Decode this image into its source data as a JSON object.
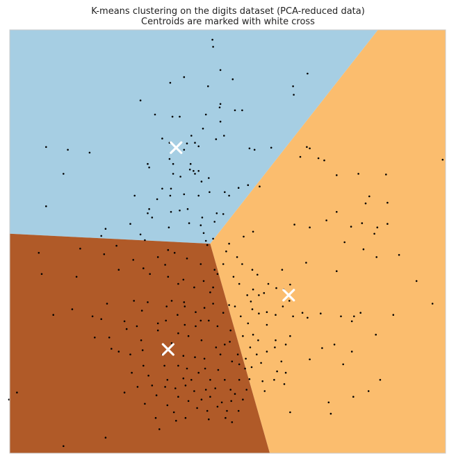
{
  "chart_data": {
    "type": "scatter",
    "title": "K-means clustering on the digits dataset (PCA-reduced data)",
    "subtitle": "Centroids are marked with white cross",
    "xlabel": "",
    "ylabel": "",
    "xlim": [
      -30,
      30
    ],
    "ylim": [
      -30,
      30
    ],
    "axis_ticks": "none",
    "grid": false,
    "colors": {
      "region_blue": "#a6cee3",
      "region_orange": "#fbbd6e",
      "region_brown": "#b05a28",
      "points": "#000000",
      "centroids": "#ffffff",
      "frame": "#cccccc"
    },
    "regions": [
      {
        "cluster": 0,
        "color": "#a6cee3",
        "polygon": [
          [
            -30,
            1.1
          ],
          [
            -2.4,
            -0.3
          ],
          [
            20.7,
            30
          ],
          [
            -30,
            30
          ]
        ]
      },
      {
        "cluster": 1,
        "color": "#fbbd6e",
        "polygon": [
          [
            -2.4,
            -0.3
          ],
          [
            20.7,
            30
          ],
          [
            30,
            30
          ],
          [
            30,
            -30
          ],
          [
            5.8,
            -30
          ]
        ]
      },
      {
        "cluster": 2,
        "color": "#b05a28",
        "polygon": [
          [
            -30,
            1.1
          ],
          [
            -2.4,
            -0.3
          ],
          [
            5.8,
            -30
          ],
          [
            -30,
            -30
          ]
        ]
      }
    ],
    "centroids": [
      {
        "x": -7.1,
        "y": 13.3
      },
      {
        "x": 8.4,
        "y": -7.6
      },
      {
        "x": -8.2,
        "y": -15.3
      }
    ],
    "points": [
      [
        -2.1,
        28.6
      ],
      [
        -2.0,
        27.6
      ],
      [
        -1.0,
        24.3
      ],
      [
        11.0,
        23.8
      ],
      [
        -6.0,
        23.3
      ],
      [
        -7.9,
        22.5
      ],
      [
        -2.7,
        22.0
      ],
      [
        0.7,
        23.0
      ],
      [
        9.0,
        22.0
      ],
      [
        9.1,
        20.8
      ],
      [
        -12.0,
        20.0
      ],
      [
        -1.0,
        19.5
      ],
      [
        -1.1,
        19.0
      ],
      [
        1.0,
        18.6
      ],
      [
        2.0,
        18.6
      ],
      [
        -3.0,
        18.0
      ],
      [
        -10.0,
        18.0
      ],
      [
        -6.6,
        17.7
      ],
      [
        -7.6,
        17.7
      ],
      [
        -1.0,
        17.0
      ],
      [
        -3.4,
        16.0
      ],
      [
        -0.5,
        15.0
      ],
      [
        -1.6,
        14.5
      ],
      [
        -5.0,
        15.0
      ],
      [
        -8.0,
        14.0
      ],
      [
        -5.6,
        13.9
      ],
      [
        -4.0,
        13.5
      ],
      [
        -6.0,
        13.0
      ],
      [
        -9.0,
        14.6
      ],
      [
        -4.5,
        14.0
      ],
      [
        -25.0,
        13.4
      ],
      [
        -22.0,
        13.0
      ],
      [
        -19.0,
        12.6
      ],
      [
        3.0,
        13.2
      ],
      [
        3.7,
        13.0
      ],
      [
        6.0,
        13.3
      ],
      [
        10.9,
        13.4
      ],
      [
        11.3,
        13.2
      ],
      [
        10.0,
        12.0
      ],
      [
        12.5,
        11.8
      ],
      [
        13.3,
        11.5
      ],
      [
        -8.0,
        11.7
      ],
      [
        -5.1,
        11.0
      ],
      [
        -7.5,
        11.0
      ],
      [
        -4.7,
        10.0
      ],
      [
        -11.0,
        11.0
      ],
      [
        -10.8,
        10.5
      ],
      [
        -5.2,
        10.2
      ],
      [
        -4.0,
        10.0
      ],
      [
        -4.5,
        9.6
      ],
      [
        -6.5,
        9.2
      ],
      [
        -22.6,
        9.6
      ],
      [
        -3.6,
        8.5
      ],
      [
        -2.6,
        9.0
      ],
      [
        -7.5,
        9.6
      ],
      [
        -7.8,
        7.5
      ],
      [
        2.8,
        8.0
      ],
      [
        4.4,
        7.8
      ],
      [
        -9.0,
        7.5
      ],
      [
        -7.9,
        6.5
      ],
      [
        -12.8,
        6.5
      ],
      [
        -9.7,
        6.0
      ],
      [
        -4.0,
        6.5
      ],
      [
        -2.5,
        7.0
      ],
      [
        1.5,
        7.6
      ],
      [
        -0.4,
        7.0
      ],
      [
        0.2,
        6.5
      ],
      [
        -6.0,
        6.7
      ],
      [
        15.0,
        9.4
      ],
      [
        18.0,
        9.6
      ],
      [
        21.8,
        9.5
      ],
      [
        -5.5,
        4.6
      ],
      [
        -6.6,
        4.4
      ],
      [
        -7.8,
        4.2
      ],
      [
        -10.8,
        4.6
      ],
      [
        -11.0,
        4.0
      ],
      [
        -10.4,
        3.4
      ],
      [
        -3.5,
        3.4
      ],
      [
        -1.8,
        2.8
      ],
      [
        -3.7,
        2.3
      ],
      [
        -5.3,
        2.6
      ],
      [
        -1.5,
        4.0
      ],
      [
        -0.6,
        3.9
      ],
      [
        19.5,
        6.4
      ],
      [
        19.0,
        5.4
      ],
      [
        15.0,
        4.2
      ],
      [
        22.0,
        5.5
      ],
      [
        -25.0,
        5.0
      ],
      [
        -8.1,
        2.0
      ],
      [
        -16.8,
        1.8
      ],
      [
        -17.4,
        0.8
      ],
      [
        -13.4,
        2.5
      ],
      [
        -12.0,
        1.0
      ],
      [
        -11.4,
        0.2
      ],
      [
        -3.0,
        0.1
      ],
      [
        -3.3,
        1.2
      ],
      [
        -2.0,
        0.4
      ],
      [
        -2.8,
        -0.5
      ],
      [
        3.5,
        1.4
      ],
      [
        2.2,
        0.7
      ],
      [
        0.2,
        -0.3
      ],
      [
        -0.2,
        -1.4
      ],
      [
        13.6,
        3.0
      ],
      [
        9.2,
        2.4
      ],
      [
        11.3,
        2.0
      ],
      [
        17.0,
        2.1
      ],
      [
        20.2,
        1.1
      ],
      [
        20.6,
        2.0
      ],
      [
        18.5,
        2.6
      ],
      [
        16.1,
        -0.1
      ],
      [
        18.7,
        -1.1
      ],
      [
        22.0,
        2.5
      ],
      [
        20.5,
        -2.2
      ],
      [
        -15.3,
        -0.6
      ],
      [
        -17.0,
        -1.8
      ],
      [
        -20.3,
        -1.0
      ],
      [
        -26.0,
        -1.6
      ],
      [
        -13.0,
        -2.6
      ],
      [
        -11.6,
        -3.8
      ],
      [
        -15.0,
        -4.0
      ],
      [
        -7.3,
        -1.6
      ],
      [
        -8.2,
        -1.2
      ],
      [
        -9.6,
        -2.2
      ],
      [
        -8.6,
        -3.3
      ],
      [
        -5.6,
        -2.4
      ],
      [
        -3.7,
        -3.2
      ],
      [
        -1.8,
        -4.0
      ],
      [
        1.3,
        -2.2
      ],
      [
        -0.6,
        -3.2
      ],
      [
        -1.4,
        -4.6
      ],
      [
        0.8,
        -5.0
      ],
      [
        2.0,
        -3.2
      ],
      [
        3.4,
        -4.0
      ],
      [
        4.1,
        -4.7
      ],
      [
        10.8,
        -3.0
      ],
      [
        7.5,
        -4.0
      ],
      [
        15.0,
        -4.2
      ],
      [
        -25.6,
        -4.6
      ],
      [
        -20.8,
        -5.0
      ],
      [
        -8.2,
        -5.0
      ],
      [
        -10.7,
        -4.6
      ],
      [
        -6.8,
        -6.0
      ],
      [
        -6.1,
        -5.4
      ],
      [
        -4.6,
        -6.5
      ],
      [
        -3.3,
        -5.6
      ],
      [
        -2.0,
        -6.5
      ],
      [
        -2.4,
        -7.2
      ],
      [
        3.5,
        -6.8
      ],
      [
        2.7,
        -7.6
      ],
      [
        3.2,
        -8.5
      ],
      [
        5.0,
        -7.3
      ],
      [
        4.3,
        -7.6
      ],
      [
        5.6,
        -6.0
      ],
      [
        1.6,
        -6.0
      ],
      [
        8.6,
        -6.1
      ],
      [
        6.7,
        -6.6
      ],
      [
        7.7,
        -6.8
      ],
      [
        1.0,
        -9.2
      ],
      [
        -6.0,
        -8.6
      ],
      [
        -7.7,
        -8.4
      ],
      [
        -8.4,
        -9.2
      ],
      [
        -5.9,
        -9.2
      ],
      [
        -11.8,
        -9.8
      ],
      [
        -12.9,
        -8.4
      ],
      [
        -16.6,
        -8.8
      ],
      [
        -11.0,
        -8.6
      ],
      [
        -4.4,
        -10.0
      ],
      [
        -3.2,
        -9.4
      ],
      [
        -2.0,
        -8.8
      ],
      [
        0.2,
        -9.0
      ],
      [
        -0.6,
        -10.1
      ],
      [
        1.8,
        -10.6
      ],
      [
        3.4,
        -9.6
      ],
      [
        4.3,
        -10.2
      ],
      [
        6.6,
        -10.4
      ],
      [
        7.6,
        -9.2
      ],
      [
        5.4,
        -10.0
      ],
      [
        8.5,
        -8.4
      ],
      [
        9.0,
        -10.6
      ],
      [
        10.3,
        -10.1
      ],
      [
        11.0,
        -10.8
      ],
      [
        12.8,
        -10.2
      ],
      [
        15.6,
        -10.6
      ],
      [
        17.4,
        -10.6
      ],
      [
        18.3,
        -10.1
      ],
      [
        17.1,
        -11.3
      ],
      [
        -24.0,
        -10.4
      ],
      [
        -21.4,
        -9.6
      ],
      [
        -18.6,
        -10.6
      ],
      [
        -17.4,
        -11.0
      ],
      [
        -14.2,
        -11.3
      ],
      [
        -12.5,
        -12.0
      ],
      [
        -9.6,
        -11.6
      ],
      [
        -8.5,
        -11.2
      ],
      [
        -6.9,
        -10.4
      ],
      [
        -5.9,
        -11.8
      ],
      [
        -4.4,
        -12.0
      ],
      [
        -3.7,
        -11.2
      ],
      [
        -2.6,
        -11.2
      ],
      [
        -1.4,
        -12.0
      ],
      [
        0.4,
        -12.6
      ],
      [
        2.8,
        -11.6
      ],
      [
        5.4,
        -11.8
      ],
      [
        2.1,
        -13.4
      ],
      [
        3.5,
        -13.2
      ],
      [
        -5.4,
        -13.4
      ],
      [
        -6.8,
        -13.0
      ],
      [
        -9.6,
        -12.6
      ],
      [
        -13.9,
        -12.4
      ],
      [
        -16.3,
        -13.6
      ],
      [
        -18.3,
        -13.6
      ],
      [
        -11.9,
        -14.0
      ],
      [
        -7.7,
        -14.4
      ],
      [
        -3.6,
        -14.0
      ],
      [
        -1.6,
        -15.0
      ],
      [
        -0.4,
        -14.6
      ],
      [
        0.3,
        -14.2
      ],
      [
        3.1,
        -15.0
      ],
      [
        4.2,
        -14.0
      ],
      [
        6.6,
        -14.0
      ],
      [
        8.0,
        -14.6
      ],
      [
        8.6,
        -13.4
      ],
      [
        6.5,
        -15.0
      ],
      [
        -11.7,
        -15.4
      ],
      [
        -13.4,
        -16.0
      ],
      [
        -15.0,
        -15.6
      ],
      [
        -16.0,
        -15.2
      ],
      [
        -9.0,
        -16.0
      ],
      [
        -6.1,
        -16.2
      ],
      [
        -4.5,
        -16.4
      ],
      [
        -3.2,
        -16.6
      ],
      [
        -1.0,
        -16.0
      ],
      [
        1.4,
        -16.0
      ],
      [
        2.5,
        -16.6
      ],
      [
        4.0,
        -16.0
      ],
      [
        5.4,
        -15.6
      ],
      [
        7.4,
        -17.0
      ],
      [
        -11.6,
        -17.6
      ],
      [
        -8.7,
        -17.6
      ],
      [
        -6.8,
        -17.6
      ],
      [
        -5.6,
        -18.0
      ],
      [
        -3.1,
        -18.0
      ],
      [
        -1.3,
        -18.2
      ],
      [
        0.6,
        -17.0
      ],
      [
        1.6,
        -17.4
      ],
      [
        2.4,
        -18.0
      ],
      [
        3.3,
        -17.8
      ],
      [
        4.6,
        -17.2
      ],
      [
        6.8,
        -18.4
      ],
      [
        8.0,
        -18.6
      ],
      [
        -13.2,
        -18.6
      ],
      [
        -10.9,
        -19.0
      ],
      [
        -8.3,
        -19.6
      ],
      [
        -6.1,
        -19.4
      ],
      [
        -5.0,
        -19.6
      ],
      [
        -4.0,
        -18.6
      ],
      [
        -2.4,
        -19.6
      ],
      [
        -0.4,
        -19.6
      ],
      [
        1.6,
        -19.6
      ],
      [
        3.0,
        -19.5
      ],
      [
        4.8,
        -19.8
      ],
      [
        6.4,
        -19.6
      ],
      [
        -12.4,
        -20.6
      ],
      [
        -10.4,
        -20.4
      ],
      [
        -8.6,
        -20.6
      ],
      [
        -7.2,
        -20.8
      ],
      [
        -5.8,
        -20.4
      ],
      [
        -4.6,
        -21.2
      ],
      [
        -3.0,
        -21.0
      ],
      [
        -1.7,
        -20.8
      ],
      [
        0.4,
        -21.0
      ],
      [
        1.0,
        -21.6
      ],
      [
        2.6,
        -21.0
      ],
      [
        5.1,
        -21.2
      ],
      [
        7.8,
        -20.2
      ],
      [
        -29.0,
        -21.4
      ],
      [
        -14.2,
        -21.4
      ],
      [
        -9.8,
        -21.8
      ],
      [
        -6.8,
        -22.0
      ],
      [
        -5.4,
        -22.6
      ],
      [
        -3.6,
        -22.4
      ],
      [
        -2.4,
        -22.0
      ],
      [
        -0.8,
        -22.8
      ],
      [
        0.5,
        -22.6
      ],
      [
        2.1,
        -22.4
      ],
      [
        -11.4,
        -23.0
      ],
      [
        -8.3,
        -23.2
      ],
      [
        -7.4,
        -24.2
      ],
      [
        -4.2,
        -23.6
      ],
      [
        -2.8,
        -24.0
      ],
      [
        -1.4,
        -23.4
      ],
      [
        -0.1,
        -24.0
      ],
      [
        1.5,
        -24.0
      ],
      [
        13.9,
        -22.8
      ],
      [
        14.2,
        -24.4
      ],
      [
        8.6,
        -24.2
      ],
      [
        -9.9,
        -25.0
      ],
      [
        -7.1,
        -25.4
      ],
      [
        -5.8,
        -25.0
      ],
      [
        -2.6,
        -25.2
      ],
      [
        -0.3,
        -25.0
      ],
      [
        0.6,
        -25.6
      ],
      [
        -9.4,
        -26.6
      ],
      [
        -16.8,
        -27.8
      ],
      [
        -22.6,
        -29.0
      ],
      [
        -30.1,
        -22.4
      ],
      [
        29.6,
        11.6
      ],
      [
        23.6,
        -1.9
      ],
      [
        26.0,
        -5.6
      ],
      [
        28.2,
        -8.8
      ],
      [
        22.8,
        -10.4
      ],
      [
        20.4,
        -13.2
      ],
      [
        17.1,
        -15.6
      ],
      [
        17.3,
        -22.0
      ],
      [
        19.4,
        -21.2
      ],
      [
        21.0,
        -19.6
      ],
      [
        15.9,
        -17.4
      ],
      [
        14.7,
        -14.6
      ],
      [
        13.0,
        -15.1
      ],
      [
        11.3,
        -16.7
      ]
    ]
  }
}
